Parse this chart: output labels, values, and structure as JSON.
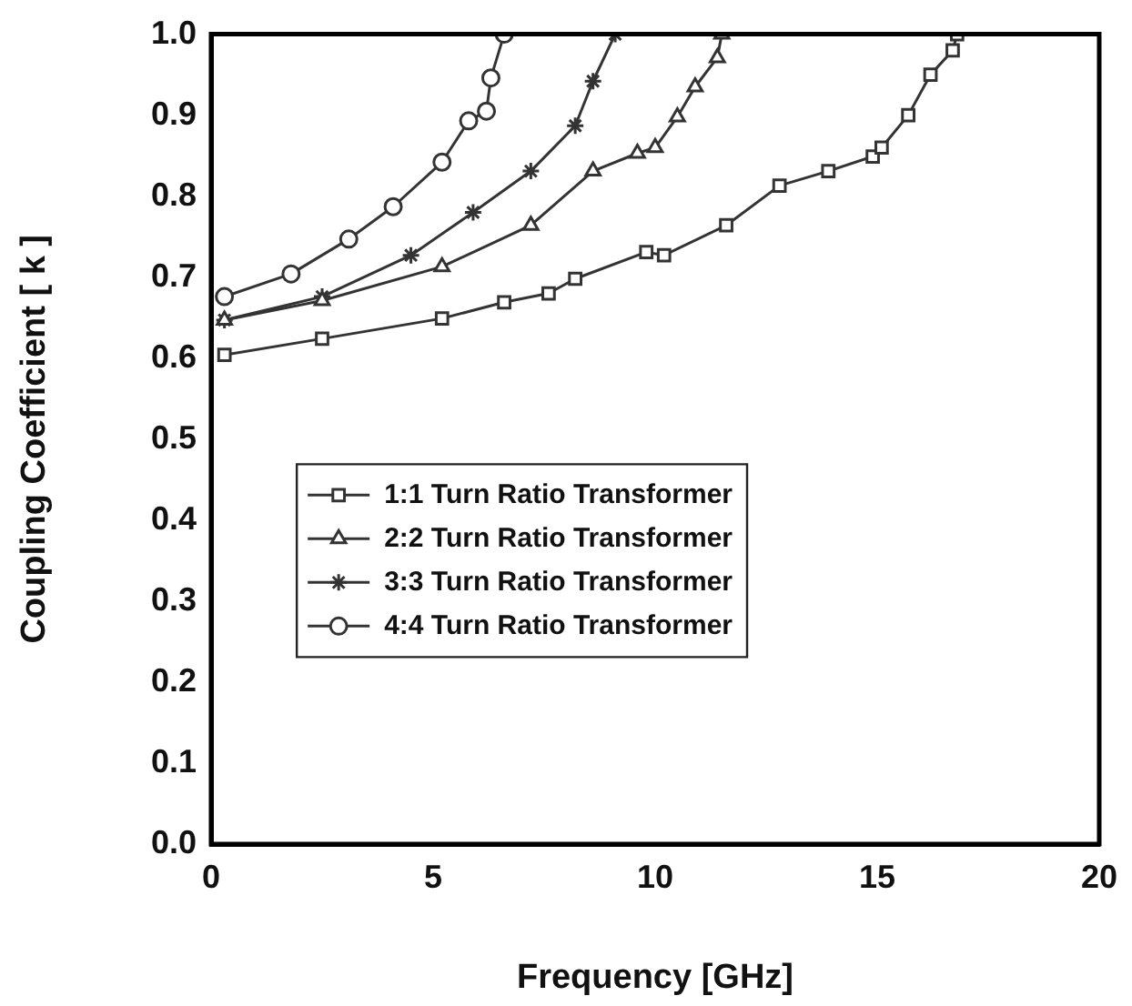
{
  "chart_data": {
    "type": "line",
    "xlabel": "Frequency [GHz]",
    "ylabel": "Coupling Coefficient [ k ]",
    "xlim": [
      0,
      20
    ],
    "xticks": [
      0,
      5,
      10,
      15,
      20
    ],
    "ylim": [
      0,
      1
    ],
    "yticks": [
      {
        "value": 0,
        "label": "0.0"
      },
      0.1,
      0.2,
      0.3,
      0.4,
      0.5,
      0.6,
      0.7,
      0.8,
      0.9,
      {
        "value": 1,
        "label": "1.0"
      }
    ],
    "grid": false,
    "legend": "center",
    "line_style": "solid",
    "series": [
      {
        "name": "1:1 Turn Ratio Transformer",
        "color": "#333333",
        "marker": "square",
        "x": [
          0.3,
          2.5,
          5.2,
          6.6,
          7.6,
          8.2,
          9.8,
          10.2,
          11.6,
          12.8,
          13.9,
          14.9,
          15.1,
          15.7,
          16.2,
          16.7,
          16.8
        ],
        "values": [
          0.604,
          0.624,
          0.649,
          0.669,
          0.68,
          0.698,
          0.731,
          0.727,
          0.764,
          0.813,
          0.831,
          0.849,
          0.86,
          0.9,
          0.95,
          0.98,
          1.0
        ]
      },
      {
        "name": "2:2 Turn Ratio Transformer",
        "color": "#333333",
        "marker": "triangle",
        "x": [
          0.3,
          2.5,
          5.2,
          7.2,
          8.6,
          9.6,
          10.0,
          10.5,
          10.9,
          11.4,
          11.5
        ],
        "values": [
          0.647,
          0.671,
          0.713,
          0.764,
          0.831,
          0.853,
          0.86,
          0.898,
          0.935,
          0.971,
          1.0
        ]
      },
      {
        "name": "3:3 Turn Ratio Transformer",
        "color": "#333333",
        "marker": "cross",
        "x": [
          0.3,
          2.5,
          4.5,
          5.9,
          7.2,
          8.2,
          8.6,
          9.1
        ],
        "values": [
          0.647,
          0.676,
          0.727,
          0.78,
          0.831,
          0.887,
          0.942,
          1.0
        ]
      },
      {
        "name": "4:4 Turn Ratio Transformer",
        "color": "#333333",
        "marker": "circle",
        "x": [
          0.3,
          1.8,
          3.1,
          4.1,
          5.2,
          5.8,
          6.2,
          6.3,
          6.6
        ],
        "values": [
          0.676,
          0.704,
          0.747,
          0.787,
          0.842,
          0.893,
          0.905,
          0.946,
          1.0
        ]
      }
    ]
  }
}
